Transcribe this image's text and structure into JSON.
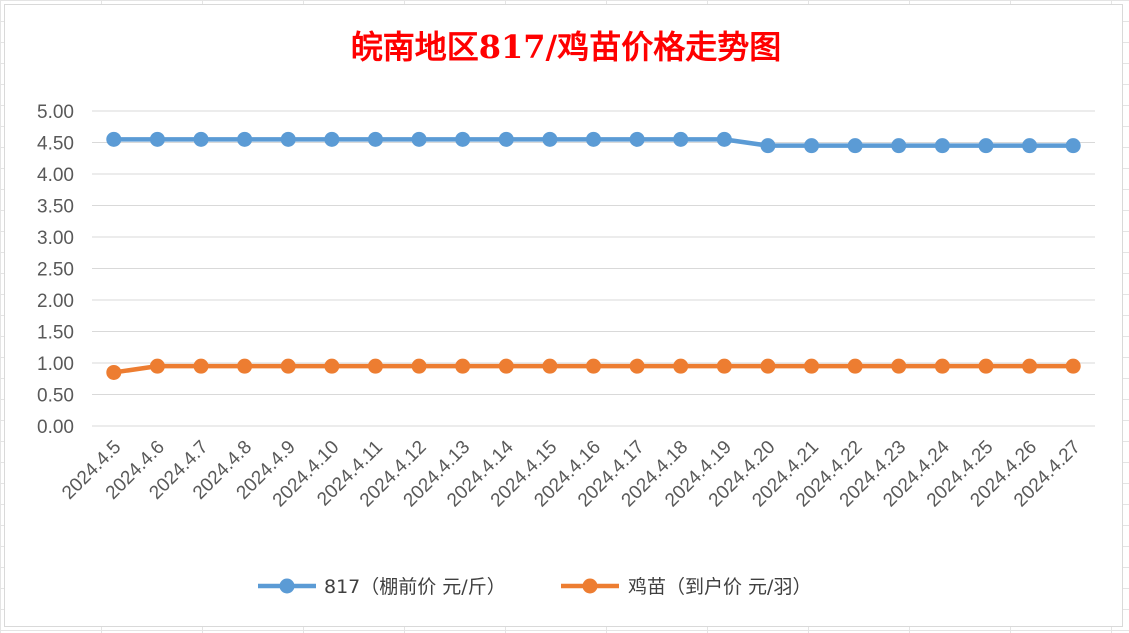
{
  "chart_data": {
    "type": "line",
    "title": "皖南地区817/鸡苗价格走势图",
    "xlabel": "",
    "ylabel": "",
    "ylim": [
      0,
      5
    ],
    "yticks": [
      "0.00",
      "0.50",
      "1.00",
      "1.50",
      "2.00",
      "2.50",
      "3.00",
      "3.50",
      "4.00",
      "4.50",
      "5.00"
    ],
    "grid": true,
    "legend_position": "bottom",
    "categories": [
      "2024.4.5",
      "2024.4.6",
      "2024.4.7",
      "2024.4.8",
      "2024.4.9",
      "2024.4.10",
      "2024.4.11",
      "2024.4.12",
      "2024.4.13",
      "2024.4.14",
      "2024.4.15",
      "2024.4.16",
      "2024.4.17",
      "2024.4.18",
      "2024.4.19",
      "2024.4.20",
      "2024.4.21",
      "2024.4.22",
      "2024.4.23",
      "2024.4.24",
      "2024.4.25",
      "2024.4.26",
      "2024.4.27"
    ],
    "series": [
      {
        "name": "817（棚前价 元/斤）",
        "color": "#5b9bd5",
        "values": [
          4.55,
          4.55,
          4.55,
          4.55,
          4.55,
          4.55,
          4.55,
          4.55,
          4.55,
          4.55,
          4.55,
          4.55,
          4.55,
          4.55,
          4.55,
          4.45,
          4.45,
          4.45,
          4.45,
          4.45,
          4.45,
          4.45,
          4.45
        ]
      },
      {
        "name": "鸡苗（到户价 元/羽）",
        "color": "#ed7d31",
        "values": [
          0.85,
          0.95,
          0.95,
          0.95,
          0.95,
          0.95,
          0.95,
          0.95,
          0.95,
          0.95,
          0.95,
          0.95,
          0.95,
          0.95,
          0.95,
          0.95,
          0.95,
          0.95,
          0.95,
          0.95,
          0.95,
          0.95,
          0.95
        ]
      }
    ]
  }
}
